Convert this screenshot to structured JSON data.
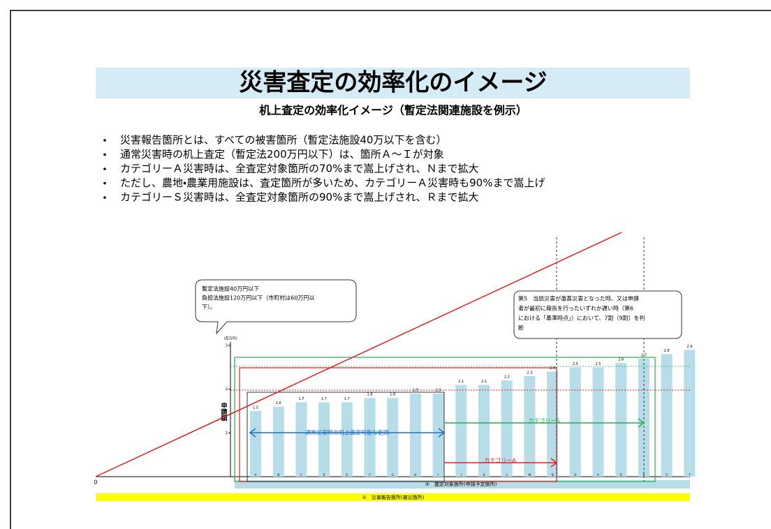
{
  "slide": {
    "title": "災害査定の効率化のイメージ",
    "subtitle": "机上査定の効率化イメージ（暫定法関連施設を例示）",
    "bullets": [
      "災害報告箇所とは、すべての被害箇所（暫定法施設40万以下を含む）",
      "通常災害時の机上査定（暫定法200万円以下）は、箇所Ａ～Ｉが対象",
      "カテゴリーＡ災害時は、全査定対象箇所の70%まで嵩上げされ、Ｎまで拡大",
      "ただし、農地・農業用施設は、査定箇所が多いため、カテゴリーＡ災害時も90%まで嵩上げ",
      "カテゴリーＳ災害時は、全査定対象箇所の90%まで嵩上げされ、Ｒまで拡大"
    ],
    "callout_left": [
      "暫定法施設40万円以下",
      "負担法施設120万円以下（市町村は60万円以",
      "下）。"
    ],
    "callout_right": [
      "第5　当該災害が激甚災害となった時、又は申請",
      "者が最初に報告を行ったいずれか遅い時（第6",
      "における「基準時点」）において、7割（9割）を判",
      "断"
    ]
  },
  "chart_data": {
    "type": "bar",
    "y_label": "申請額",
    "y_unit": "(百万円)",
    "categories": [
      "A",
      "B",
      "C",
      "D",
      "E",
      "F",
      "G",
      "H",
      "I",
      "J",
      "K",
      "L",
      "M",
      "N",
      "O",
      "P",
      "Q",
      "R",
      "S",
      "T"
    ],
    "values": [
      1.5,
      1.6,
      1.7,
      1.7,
      1.7,
      1.8,
      1.8,
      1.9,
      1.9,
      2.1,
      2.1,
      2.2,
      2.3,
      2.4,
      2.5,
      2.5,
      2.6,
      2.7,
      2.8,
      2.9
    ],
    "color": "#b7dde8",
    "ylim": [
      0,
      3
    ],
    "yticks": [
      0,
      1,
      2,
      3
    ],
    "annotations": {
      "normal": "通常災害時の机上査定可能な範囲",
      "cat_a": "カテゴリーA",
      "cat_s": "カテゴリーS",
      "band_target": "②　査定対象箇所(申請予定箇所)",
      "band_report": "①　災害報告箇所(被災箇所)"
    }
  }
}
